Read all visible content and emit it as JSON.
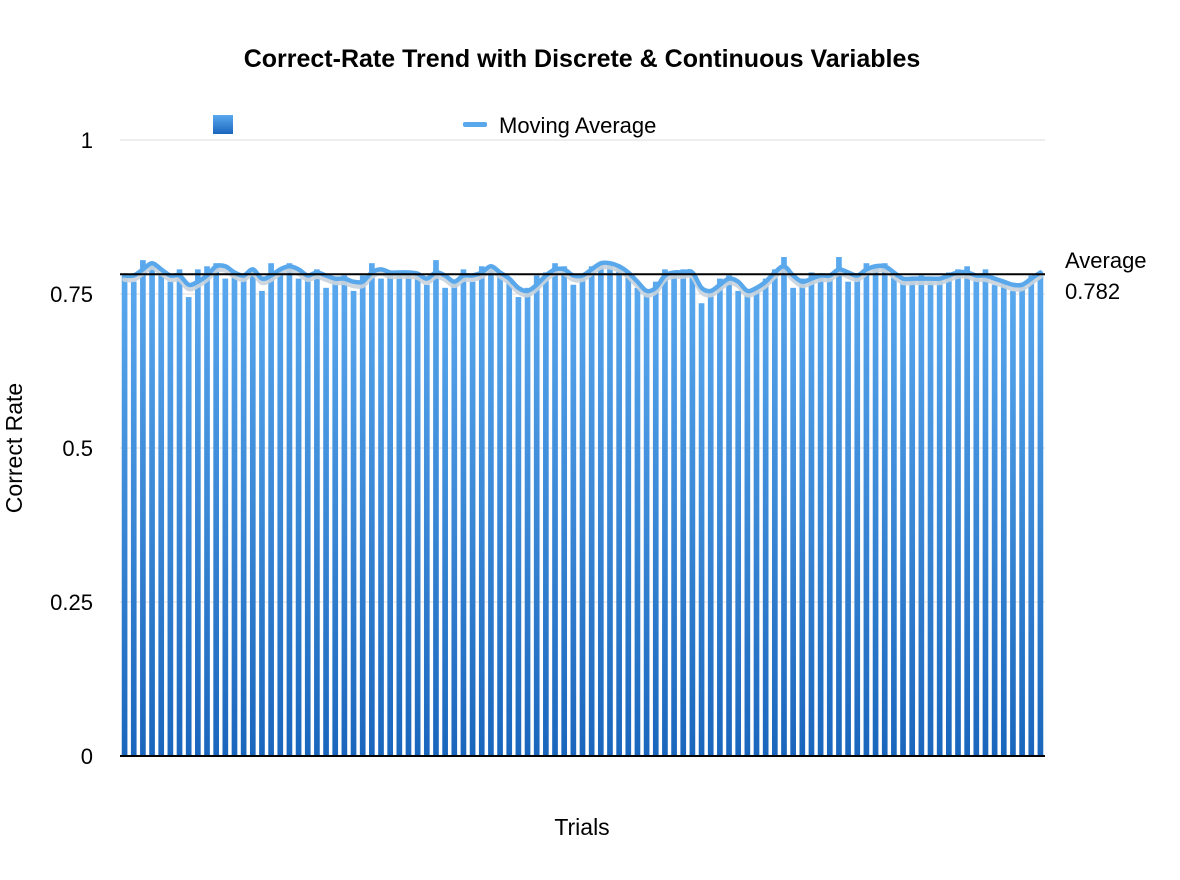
{
  "chart_data": {
    "type": "bar",
    "title": "Correct-Rate Trend with Discrete & Continuous Variables",
    "xlabel": "Trials",
    "ylabel": "Correct Rate",
    "ylim": [
      0,
      1
    ],
    "yticks": [
      {
        "value": 0,
        "label": "0"
      },
      {
        "value": 0.25,
        "label": "0.25"
      },
      {
        "value": 0.5,
        "label": "0.5"
      },
      {
        "value": 0.75,
        "label": "0.75"
      },
      {
        "value": 1,
        "label": "1"
      }
    ],
    "grid": true,
    "legend_position": "top",
    "legend": [
      {
        "kind": "bar",
        "label": ""
      },
      {
        "kind": "line",
        "label": "Moving Average"
      }
    ],
    "reference_line": {
      "label": "Average",
      "value": 0.782,
      "value_label": "0.782"
    },
    "colors": {
      "bar_top": "#5aa9ef",
      "bar_bottom": "#1a66bd",
      "moving_average": "#5aa8ec",
      "moving_average_shadow": "#c9d3dc",
      "average_line": "#000000",
      "grid": "#dddddd"
    },
    "series": [
      {
        "kind": "bar",
        "values": [
          0.78,
          0.77,
          0.805,
          0.795,
          0.78,
          0.77,
          0.79,
          0.745,
          0.79,
          0.795,
          0.8,
          0.775,
          0.785,
          0.78,
          0.79,
          0.755,
          0.8,
          0.79,
          0.8,
          0.775,
          0.78,
          0.79,
          0.76,
          0.775,
          0.78,
          0.755,
          0.78,
          0.8,
          0.775,
          0.785,
          0.78,
          0.785,
          0.78,
          0.765,
          0.805,
          0.76,
          0.77,
          0.79,
          0.77,
          0.795,
          0.79,
          0.78,
          0.77,
          0.745,
          0.76,
          0.78,
          0.785,
          0.8,
          0.795,
          0.765,
          0.78,
          0.795,
          0.8,
          0.8,
          0.795,
          0.78,
          0.76,
          0.75,
          0.77,
          0.79,
          0.785,
          0.79,
          0.785,
          0.735,
          0.755,
          0.775,
          0.78,
          0.755,
          0.75,
          0.76,
          0.775,
          0.79,
          0.81,
          0.76,
          0.775,
          0.785,
          0.78,
          0.775,
          0.81,
          0.77,
          0.78,
          0.8,
          0.795,
          0.8,
          0.785,
          0.77,
          0.775,
          0.78,
          0.77,
          0.775,
          0.785,
          0.79,
          0.795,
          0.775,
          0.79,
          0.765,
          0.77,
          0.755,
          0.765,
          0.78,
          0.785
        ]
      },
      {
        "kind": "line",
        "name": "Moving Average",
        "values": [
          0.78,
          0.78,
          0.79,
          0.8,
          0.79,
          0.78,
          0.78,
          0.765,
          0.77,
          0.78,
          0.795,
          0.795,
          0.785,
          0.78,
          0.79,
          0.775,
          0.78,
          0.79,
          0.795,
          0.79,
          0.78,
          0.785,
          0.78,
          0.775,
          0.775,
          0.77,
          0.77,
          0.785,
          0.79,
          0.785,
          0.785,
          0.785,
          0.783,
          0.775,
          0.785,
          0.78,
          0.77,
          0.78,
          0.78,
          0.785,
          0.795,
          0.785,
          0.775,
          0.76,
          0.755,
          0.765,
          0.78,
          0.79,
          0.79,
          0.78,
          0.78,
          0.79,
          0.8,
          0.8,
          0.795,
          0.785,
          0.77,
          0.755,
          0.76,
          0.78,
          0.785,
          0.785,
          0.785,
          0.76,
          0.755,
          0.765,
          0.775,
          0.77,
          0.755,
          0.76,
          0.77,
          0.785,
          0.795,
          0.78,
          0.77,
          0.775,
          0.78,
          0.78,
          0.79,
          0.785,
          0.78,
          0.79,
          0.795,
          0.795,
          0.785,
          0.775,
          0.775,
          0.775,
          0.775,
          0.775,
          0.78,
          0.785,
          0.785,
          0.78,
          0.78,
          0.775,
          0.77,
          0.765,
          0.765,
          0.775,
          0.785
        ]
      }
    ]
  }
}
